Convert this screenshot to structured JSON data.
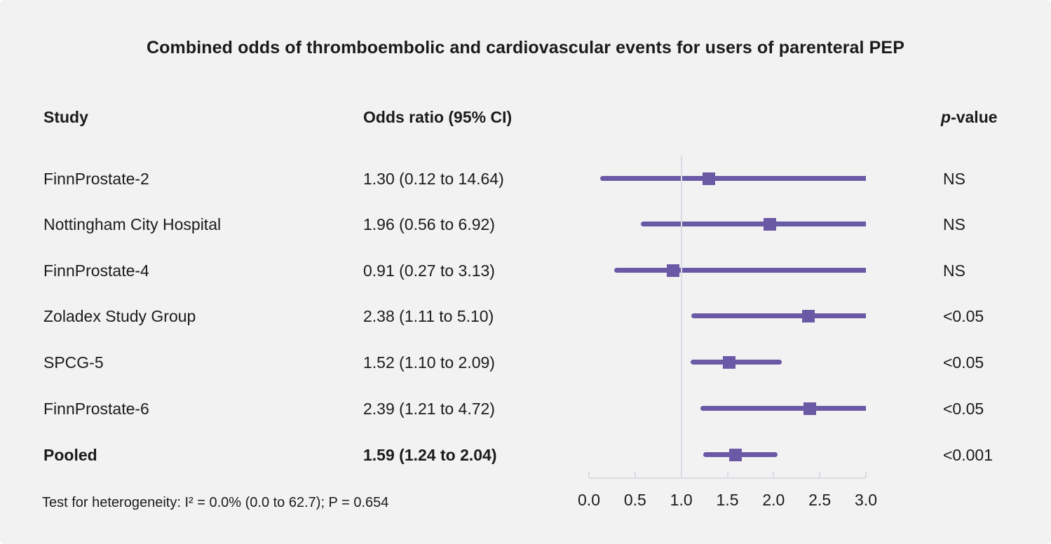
{
  "title": "Combined odds of thromboembolic and cardiovascular events for users of parenteral PEP",
  "columns": {
    "study": "Study",
    "odds_ratio": "Odds ratio (95% CI)",
    "p_italic": "p",
    "p_rest": "-value"
  },
  "footer": "Test for heterogeneity: I² = 0.0% (0.0 to 62.7); P = 0.654",
  "colors": {
    "accent_purple": "#6a59a4",
    "axis_grey": "#d9dce2",
    "background": "#f2f2f3",
    "text": "#1b1b1d"
  },
  "chart_data": {
    "type": "forest",
    "title": "Combined odds of thromboembolic and cardiovascular events for users of parenteral PEP",
    "xlim": [
      0.0,
      3.0
    ],
    "reference_line": 1.0,
    "grid": false,
    "ticks": [
      {
        "value": 0.0,
        "label": "0.0"
      },
      {
        "value": 0.5,
        "label": "0.5"
      },
      {
        "value": 1.0,
        "label": "1.0"
      },
      {
        "value": 1.5,
        "label": "1.5"
      },
      {
        "value": 2.0,
        "label": "2.0"
      },
      {
        "value": 2.5,
        "label": "2.5"
      },
      {
        "value": 3.0,
        "label": "3.0"
      }
    ],
    "rows": [
      {
        "study": "FinnProstate-2",
        "or": 1.3,
        "ci_low": 0.12,
        "ci_high": 14.64,
        "or_label": "1.30 (0.12 to 14.64)",
        "p": "NS",
        "bold": false
      },
      {
        "study": "Nottingham City Hospital",
        "or": 1.96,
        "ci_low": 0.56,
        "ci_high": 6.92,
        "or_label": "1.96 (0.56 to 6.92)",
        "p": "NS",
        "bold": false
      },
      {
        "study": "FinnProstate-4",
        "or": 0.91,
        "ci_low": 0.27,
        "ci_high": 3.13,
        "or_label": "0.91 (0.27 to 3.13)",
        "p": "NS",
        "bold": false
      },
      {
        "study": "Zoladex Study Group",
        "or": 2.38,
        "ci_low": 1.11,
        "ci_high": 5.1,
        "or_label": "2.38 (1.11 to 5.10)",
        "p": "<0.05",
        "bold": false
      },
      {
        "study": "SPCG-5",
        "or": 1.52,
        "ci_low": 1.1,
        "ci_high": 2.09,
        "or_label": "1.52 (1.10 to 2.09)",
        "p": "<0.05",
        "bold": false
      },
      {
        "study": "FinnProstate-6",
        "or": 2.39,
        "ci_low": 1.21,
        "ci_high": 4.72,
        "or_label": "2.39 (1.21 to 4.72)",
        "p": "<0.05",
        "bold": false
      },
      {
        "study": "Pooled",
        "or": 1.59,
        "ci_low": 1.24,
        "ci_high": 2.04,
        "or_label": "1.59 (1.24 to 2.04)",
        "p": "<0.001",
        "bold": true
      }
    ]
  }
}
